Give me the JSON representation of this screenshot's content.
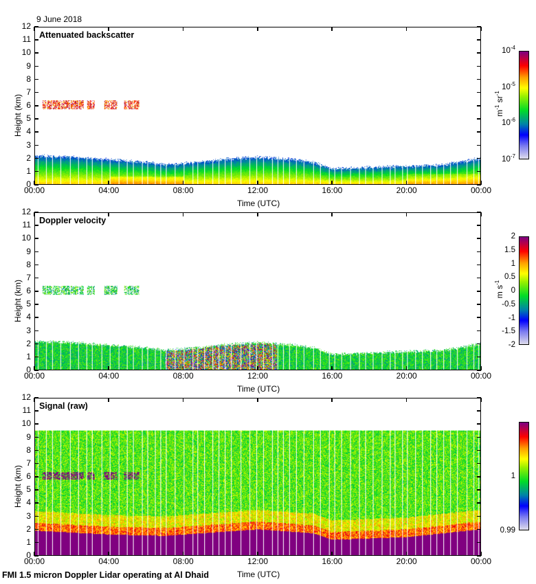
{
  "date": "9 June 2018",
  "footer": "FMI 1.5 micron Doppler Lidar operating at Al Dhaid",
  "chart_data": [
    {
      "type": "heatmap",
      "title": "Attenuated backscatter",
      "xlabel": "Time (UTC)",
      "ylabel": "Height (km)",
      "x_ticks": [
        "00:00",
        "04:00",
        "08:00",
        "12:00",
        "16:00",
        "20:00",
        "00:00"
      ],
      "y_ticks": [
        "0",
        "1",
        "2",
        "3",
        "4",
        "5",
        "6",
        "7",
        "8",
        "9",
        "10",
        "11",
        "12"
      ],
      "xlim_hours": [
        0,
        24
      ],
      "ylim_km": [
        0,
        12
      ],
      "colorbar": {
        "scale": "log",
        "range": [
          1e-07,
          0.0001
        ],
        "ticks": [
          {
            "base": "10",
            "exp": "-4"
          },
          {
            "base": "10",
            "exp": "-5"
          },
          {
            "base": "10",
            "exp": "-6"
          },
          {
            "base": "10",
            "exp": "-7"
          }
        ],
        "unit_parts": [
          "m",
          "-1",
          " sr",
          "-1"
        ]
      },
      "features": {
        "boundary_layer_top_km": [
          [
            0,
            2.2
          ],
          [
            2,
            2.1
          ],
          [
            4,
            1.9
          ],
          [
            6,
            1.7
          ],
          [
            7,
            1.5
          ],
          [
            8,
            1.6
          ],
          [
            10,
            1.9
          ],
          [
            12,
            2.1
          ],
          [
            14,
            1.9
          ],
          [
            15,
            1.7
          ],
          [
            16,
            1.2
          ],
          [
            18,
            1.3
          ],
          [
            20,
            1.4
          ],
          [
            22,
            1.5
          ],
          [
            24,
            2.0
          ]
        ],
        "cloud_layer_km": {
          "height": 6.1,
          "time_ranges_h": [
            [
              0.4,
              2.6
            ],
            [
              2.8,
              3.2
            ],
            [
              3.7,
              4.4
            ],
            [
              4.8,
              5.6
            ]
          ]
        }
      }
    },
    {
      "type": "heatmap",
      "title": "Doppler velocity",
      "xlabel": "Time (UTC)",
      "ylabel": "Height (km)",
      "x_ticks": [
        "00:00",
        "04:00",
        "08:00",
        "12:00",
        "16:00",
        "20:00",
        "00:00"
      ],
      "y_ticks": [
        "0",
        "1",
        "2",
        "3",
        "4",
        "5",
        "6",
        "7",
        "8",
        "9",
        "10",
        "11",
        "12"
      ],
      "xlim_hours": [
        0,
        24
      ],
      "ylim_km": [
        0,
        12
      ],
      "colorbar": {
        "scale": "linear",
        "range": [
          -2,
          2
        ],
        "ticks": [
          "2",
          "1.5",
          "1",
          "0.5",
          "0",
          "-0.5",
          "-1",
          "-1.5",
          "-2"
        ],
        "unit_parts": [
          "m s",
          "-1"
        ]
      },
      "features": {
        "turbulent_period_h": [
          7,
          13
        ]
      }
    },
    {
      "type": "heatmap",
      "title": "Signal (raw)",
      "xlabel": "Time (UTC)",
      "ylabel": "Height (km)",
      "x_ticks": [
        "00:00",
        "04:00",
        "08:00",
        "12:00",
        "16:00",
        "20:00",
        "00:00"
      ],
      "y_ticks": [
        "0",
        "1",
        "2",
        "3",
        "4",
        "5",
        "6",
        "7",
        "8",
        "9",
        "10",
        "11",
        "12"
      ],
      "xlim_hours": [
        0,
        24
      ],
      "ylim_km": [
        0,
        12
      ],
      "colorbar": {
        "scale": "linear",
        "range": [
          0.99,
          1.01
        ],
        "ticks": [
          "1",
          "0.99"
        ],
        "unit_parts": []
      },
      "features": {
        "max_range_km": 9.6,
        "saturated_top_km": [
          [
            0,
            1.9
          ],
          [
            4,
            1.6
          ],
          [
            7,
            1.5
          ],
          [
            8,
            1.6
          ],
          [
            12,
            2.0
          ],
          [
            15,
            1.7
          ],
          [
            16,
            1.2
          ],
          [
            20,
            1.4
          ],
          [
            24,
            2.0
          ]
        ]
      }
    }
  ]
}
